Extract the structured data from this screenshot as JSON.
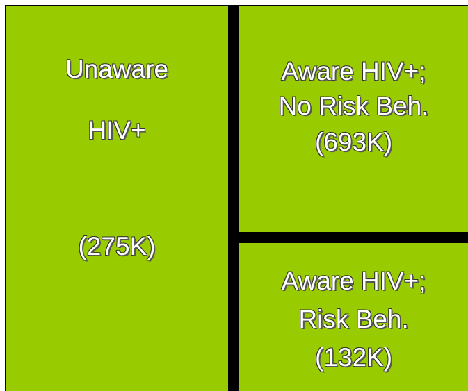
{
  "boxes": [
    {
      "lines": [
        "Unaware",
        "HIV+",
        "(275K)"
      ]
    },
    {
      "lines": [
        "Aware HIV+;",
        "No Risk Beh.",
        "(693K)"
      ]
    },
    {
      "lines": [
        "Aware HIV+;",
        "Risk Beh.",
        "(132K)"
      ]
    }
  ]
}
